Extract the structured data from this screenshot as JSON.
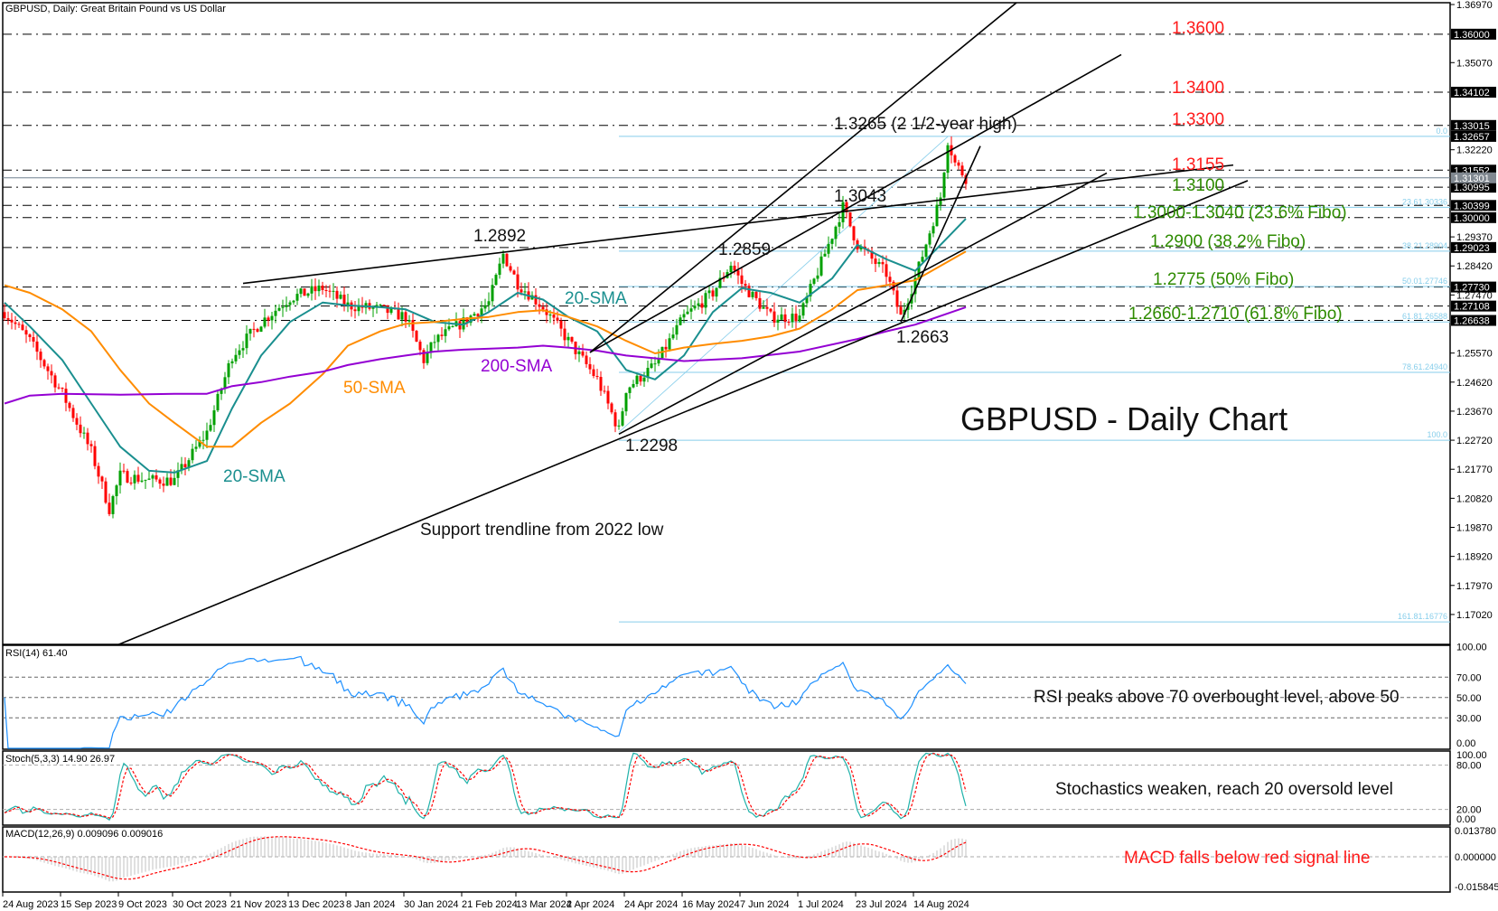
{
  "header": {
    "title": "GBPUSD, Daily:  Great Britain Pound vs US Dollar"
  },
  "chart_data": {
    "type": "candlestick",
    "title": "GBPUSD - Daily Chart",
    "symbol": "GBPUSD",
    "ylim": [
      1.1702,
      1.3697
    ],
    "price_ticks": [
      "1.36970",
      "1.35070",
      "1.32220",
      "1.29370",
      "1.28420",
      "1.27470",
      "1.25570",
      "1.24620",
      "1.23670",
      "1.22720",
      "1.21770",
      "1.20820",
      "1.19870",
      "1.18920",
      "1.17970",
      "1.17020"
    ],
    "marked_levels": [
      "1.36000",
      "1.34102",
      "1.33015",
      "1.32657",
      "1.31552",
      "1.30995",
      "1.30399",
      "1.30000",
      "1.29023",
      "1.27730",
      "1.27108",
      "1.26638"
    ],
    "current_price": "1.31301",
    "date_ticks": [
      "24 Aug 2023",
      "15 Sep 2023",
      "9 Oct 2023",
      "30 Oct 2023",
      "21 Nov 2023",
      "13 Dec 2023",
      "8 Jan 2024",
      "30 Jan 2024",
      "21 Feb 2024",
      "13 Mar 2024",
      "2 Apr 2024",
      "24 Apr 2024",
      "16 May 2024",
      "7 Jun 2024",
      "1 Jul 2024",
      "23 Jul 2024",
      "14 Aug 2024"
    ],
    "close_path": [
      [
        "2023-08-24",
        1.2691
      ],
      [
        "2023-09-04",
        1.2597
      ],
      [
        "2023-09-15",
        1.2424
      ],
      [
        "2023-09-27",
        1.2235
      ],
      [
        "2023-10-04",
        1.2047
      ],
      [
        "2023-10-09",
        1.2157
      ],
      [
        "2023-10-19",
        1.2141
      ],
      [
        "2023-10-30",
        1.2141
      ],
      [
        "2023-11-10",
        1.2298
      ],
      [
        "2023-11-21",
        1.2549
      ],
      [
        "2023-12-01",
        1.2659
      ],
      [
        "2023-12-13",
        1.2738
      ],
      [
        "2023-12-27",
        1.2769
      ],
      [
        "2024-01-08",
        1.2713
      ],
      [
        "2024-01-19",
        1.27
      ],
      [
        "2024-01-30",
        1.2675
      ],
      [
        "2024-02-06",
        1.2534
      ],
      [
        "2024-02-09",
        1.2597
      ],
      [
        "2024-02-21",
        1.2659
      ],
      [
        "2024-03-01",
        1.2722
      ],
      [
        "2024-03-07",
        1.288
      ],
      [
        "2024-03-13",
        1.2785
      ],
      [
        "2024-03-22",
        1.2707
      ],
      [
        "2024-04-02",
        1.2597
      ],
      [
        "2024-04-12",
        1.2471
      ],
      [
        "2024-04-22",
        1.2305
      ],
      [
        "2024-04-24",
        1.244
      ],
      [
        "2024-05-06",
        1.2518
      ],
      [
        "2024-05-16",
        1.2675
      ],
      [
        "2024-05-28",
        1.2754
      ],
      [
        "2024-06-04",
        1.2848
      ],
      [
        "2024-06-07",
        1.2785
      ],
      [
        "2024-06-19",
        1.2675
      ],
      [
        "2024-07-01",
        1.2675
      ],
      [
        "2024-07-12",
        1.2942
      ],
      [
        "2024-07-17",
        1.3035
      ],
      [
        "2024-07-23",
        1.2911
      ],
      [
        "2024-08-02",
        1.2817
      ],
      [
        "2024-08-08",
        1.2675
      ],
      [
        "2024-08-14",
        1.2801
      ],
      [
        "2024-08-23",
        1.3068
      ],
      [
        "2024-08-27",
        1.3255
      ],
      [
        "2024-08-29",
        1.3178
      ],
      [
        "2024-09-03",
        1.313
      ]
    ],
    "sma": [
      {
        "name": "20-SMA",
        "color": "#1a8f8f",
        "points": [
          [
            "2023-08-24",
            1.2722
          ],
          [
            "2023-09-04",
            1.2644
          ],
          [
            "2023-09-15",
            1.2534
          ],
          [
            "2023-09-27",
            1.2392
          ],
          [
            "2023-10-09",
            1.2251
          ],
          [
            "2023-10-19",
            1.2172
          ],
          [
            "2023-10-30",
            1.2166
          ],
          [
            "2023-11-10",
            1.2204
          ],
          [
            "2023-11-21",
            1.2377
          ],
          [
            "2023-12-01",
            1.2549
          ],
          [
            "2023-12-13",
            1.2659
          ],
          [
            "2023-12-27",
            1.2722
          ],
          [
            "2024-01-08",
            1.2713
          ],
          [
            "2024-01-19",
            1.2707
          ],
          [
            "2024-01-30",
            1.27
          ],
          [
            "2024-02-09",
            1.2659
          ],
          [
            "2024-02-21",
            1.265
          ],
          [
            "2024-03-01",
            1.2691
          ],
          [
            "2024-03-13",
            1.2754
          ],
          [
            "2024-03-22",
            1.2732
          ],
          [
            "2024-04-02",
            1.2675
          ],
          [
            "2024-04-12",
            1.2628
          ],
          [
            "2024-04-24",
            1.2502
          ],
          [
            "2024-05-06",
            1.2471
          ],
          [
            "2024-05-16",
            1.2549
          ],
          [
            "2024-05-28",
            1.2691
          ],
          [
            "2024-06-07",
            1.2769
          ],
          [
            "2024-06-19",
            1.2754
          ],
          [
            "2024-07-01",
            1.2722
          ],
          [
            "2024-07-12",
            1.2801
          ],
          [
            "2024-07-23",
            1.2911
          ],
          [
            "2024-08-02",
            1.2864
          ],
          [
            "2024-08-14",
            1.2826
          ],
          [
            "2024-09-03",
            1.2996
          ]
        ]
      },
      {
        "name": "50-SMA",
        "color": "#ff8c00",
        "points": [
          [
            "2023-08-24",
            1.2779
          ],
          [
            "2023-09-04",
            1.2754
          ],
          [
            "2023-09-15",
            1.27
          ],
          [
            "2023-09-27",
            1.2628
          ],
          [
            "2023-10-09",
            1.2502
          ],
          [
            "2023-10-19",
            1.2392
          ],
          [
            "2023-10-30",
            1.2329
          ],
          [
            "2023-11-10",
            1.2251
          ],
          [
            "2023-11-21",
            1.2251
          ],
          [
            "2023-12-01",
            1.2329
          ],
          [
            "2023-12-13",
            1.2392
          ],
          [
            "2023-12-27",
            1.2487
          ],
          [
            "2024-01-08",
            1.2581
          ],
          [
            "2024-01-19",
            1.2628
          ],
          [
            "2024-01-30",
            1.2653
          ],
          [
            "2024-02-09",
            1.2659
          ],
          [
            "2024-02-21",
            1.2669
          ],
          [
            "2024-03-01",
            1.2675
          ],
          [
            "2024-03-13",
            1.2691
          ],
          [
            "2024-03-22",
            1.2697
          ],
          [
            "2024-04-02",
            1.2675
          ],
          [
            "2024-04-12",
            1.2644
          ],
          [
            "2024-04-24",
            1.2597
          ],
          [
            "2024-05-06",
            1.2556
          ],
          [
            "2024-05-16",
            1.2575
          ],
          [
            "2024-05-28",
            1.2587
          ],
          [
            "2024-06-07",
            1.2597
          ],
          [
            "2024-06-19",
            1.2612
          ],
          [
            "2024-07-01",
            1.2637
          ],
          [
            "2024-07-12",
            1.27
          ],
          [
            "2024-07-23",
            1.2763
          ],
          [
            "2024-08-02",
            1.2779
          ],
          [
            "2024-08-14",
            1.2795
          ],
          [
            "2024-09-03",
            1.2889
          ]
        ]
      },
      {
        "name": "200-SMA",
        "color": "#9400d3",
        "points": [
          [
            "2023-08-24",
            1.2392
          ],
          [
            "2023-09-04",
            1.2418
          ],
          [
            "2023-09-15",
            1.2424
          ],
          [
            "2023-10-09",
            1.2421
          ],
          [
            "2023-10-30",
            1.2424
          ],
          [
            "2023-11-10",
            1.2424
          ],
          [
            "2023-11-21",
            1.2449
          ],
          [
            "2023-12-01",
            1.2462
          ],
          [
            "2023-12-13",
            1.248
          ],
          [
            "2023-12-27",
            1.2496
          ],
          [
            "2024-01-08",
            1.2518
          ],
          [
            "2024-01-19",
            1.2537
          ],
          [
            "2024-01-30",
            1.2549
          ],
          [
            "2024-02-09",
            1.2562
          ],
          [
            "2024-02-21",
            1.2568
          ],
          [
            "2024-03-13",
            1.2575
          ],
          [
            "2024-03-22",
            1.2581
          ],
          [
            "2024-04-02",
            1.2575
          ],
          [
            "2024-04-12",
            1.2565
          ],
          [
            "2024-04-24",
            1.2549
          ],
          [
            "2024-05-16",
            1.2531
          ],
          [
            "2024-06-07",
            1.254
          ],
          [
            "2024-07-01",
            1.2562
          ],
          [
            "2024-07-23",
            1.2603
          ],
          [
            "2024-08-02",
            1.2628
          ],
          [
            "2024-08-14",
            1.265
          ],
          [
            "2024-09-03",
            1.2707
          ]
        ]
      }
    ],
    "fibonacci": {
      "color": "#87ceeb",
      "start_date": "2024-04-22",
      "levels": [
        {
          "label": "0.0",
          "price": 1.32657
        },
        {
          "label": "23.6",
          "price": 1.30336,
          "text": "1.30336"
        },
        {
          "label": "38.2",
          "price": 1.28904,
          "text": "1.28904"
        },
        {
          "label": "50.0",
          "price": 1.27746,
          "text": "1.27746"
        },
        {
          "label": "61.8",
          "price": 1.26588,
          "text": "1.26588"
        },
        {
          "label": "78.6",
          "price": 1.2494,
          "text": "1.24940"
        },
        {
          "label": "100.0",
          "price": 1.2272
        },
        {
          "label": "161.8",
          "price": 1.16776,
          "text": "1.16776"
        }
      ]
    },
    "trendlines": [
      [
        [
          "2023-10-06",
          1.1601
        ],
        [
          "2024-12-20",
          1.3121
        ]
      ],
      [
        [
          "2023-11-24",
          1.2785
        ],
        [
          "2024-12-16",
          1.3172
        ]
      ],
      [
        [
          "2024-04-10",
          1.2559
        ],
        [
          "2024-09-22",
          1.3703
        ]
      ],
      [
        [
          "2024-04-10",
          1.2559
        ],
        [
          "2024-11-01",
          1.3533
        ]
      ],
      [
        [
          "2024-04-22",
          1.2292
        ],
        [
          "2024-10-28",
          1.3146
        ]
      ],
      [
        [
          "2024-08-08",
          1.2659
        ],
        [
          "2024-09-07",
          1.3234
        ]
      ]
    ],
    "rsi": {
      "label": "RSI(14) 61.40",
      "levels": [
        70,
        50,
        30
      ],
      "ticks": [
        "100.00",
        "70.00",
        "50.00",
        "30.00",
        "0.00"
      ],
      "color": "#1e90ff"
    },
    "stoch": {
      "label": "Stoch(5,3,3) 14.90 26.97",
      "levels": [
        80,
        20
      ],
      "ticks": [
        "100.00",
        "80.00",
        "20.00",
        "0.00"
      ],
      "main_color": "#20b2aa",
      "signal_color": "#ff0000"
    },
    "macd": {
      "label": "MACD(12,26,9) 0.009096 0.009016",
      "ticks": [
        "0.013780",
        "0.000000",
        "-0.015845"
      ],
      "hist_color": "#c0c0c0",
      "signal_color": "#ff0000"
    },
    "colors": {
      "bull": "#00a000",
      "bear": "#ff0000",
      "level_line": "#000000",
      "current_line": "#708090"
    }
  },
  "annotations": {
    "r1": "1.3600",
    "r2": "1.3400",
    "r3": "1.3300",
    "r4": "1.3155",
    "s1": "1.3100",
    "s2": "1.3000-1.3040 (23.6% Fibo)",
    "s3": "1.2900 (38.2% Fibo)",
    "s4": "1.2775 (50% Fibo)",
    "s5": "1.2660-1.2710 (61.8% Fibo)",
    "high": "1.3265 (2 1/2-year high)",
    "p1": "1.3043",
    "p2": "1.2892",
    "p3": "1.2859",
    "p4": "1.2663",
    "p5": "1.2298",
    "sma20a": "20-SMA",
    "sma20b": "20-SMA",
    "sma50": "50-SMA",
    "sma200": "200-SMA",
    "title": "GBPUSD - Daily Chart",
    "support": "Support trendline from 2022 low",
    "rsi_note": "RSI peaks above 70 overbought level, above 50",
    "stoch_note": "Stochastics weaken, reach 20 oversold level",
    "macd_note": "MACD falls below red signal line"
  }
}
